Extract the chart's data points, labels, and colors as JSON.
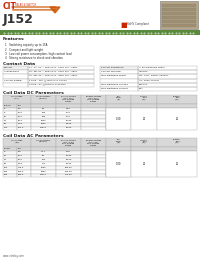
{
  "title": "J152",
  "logo_text": "CIT",
  "subtitle": "RELAY & SWITCH",
  "rohs_text": "RoHS Compliant",
  "features_title": "Features",
  "features": [
    "Switching capacity up to 15A",
    "Compact and light weight",
    "Low coil power consumption, high contact load",
    "Strong resistance to shock and vibration"
  ],
  "contact_data_title": "Contact Data",
  "contact_left": [
    [
      "Contact",
      "1A, 2A, 2C = SPST N.O., SPST N.C., SPDT"
    ],
    [
      "Arrangement",
      "3A, 3B, 3C = 3PST N.O., 3PST N.C., 3PST"
    ],
    [
      "",
      "4A, 4B, 4C = 4PST N.O., 4PST N.C., 4PST"
    ],
    [
      "Contact Rating",
      "1 Pole - 15A @125VAC & 30VDC"
    ],
    [
      "",
      "4 Pole - 5A @250VAC & 30VDC"
    ]
  ],
  "contact_right": [
    [
      "Contact Resistance",
      "< 50 milliohms initial"
    ],
    [
      "Contact Material",
      "AgSnO2"
    ],
    [
      "Max Switching Power",
      "DC: 3.5A, 280W, 1500VA"
    ],
    [
      "",
      "AC: 4000 1000W"
    ],
    [
      "Max Switching Voltage",
      "300VAC"
    ],
    [
      "Max Switching Current",
      "15A"
    ]
  ],
  "dc_title": "Coil Data DC Parameters",
  "dc_subheader": [
    "Nominal",
    "Max"
  ],
  "dc_rows": [
    [
      "5",
      "5.5",
      "80",
      "3.50"
    ],
    [
      "5",
      "12.5",
      "120",
      "8.40"
    ],
    [
      "12",
      "13.5",
      "480",
      "8.40"
    ],
    [
      "24",
      "26.4",
      "1500",
      "16.80"
    ],
    [
      "48",
      "52.8",
      "2500",
      "33.60"
    ],
    [
      "110",
      "121.0",
      "21040",
      "66.00"
    ]
  ],
  "dc_merged": {
    "coil_power": "0.30",
    "operate_time": "20",
    "release_time": "20"
  },
  "ac_title": "Coil Data AC Parameters",
  "ac_subheader": [
    "Current",
    "Max"
  ],
  "ac_rows": [
    [
      "6",
      "6.6",
      "11.1",
      "4.80"
    ],
    [
      "12",
      "13.2",
      "68",
      "18.80"
    ],
    [
      "24",
      "26.4",
      "194",
      "66.20"
    ],
    [
      "48",
      "52.8",
      "774",
      "50.40"
    ],
    [
      "100",
      "110.0",
      "6750",
      "680.00"
    ],
    [
      "120",
      "132.0",
      "6560",
      "100.00"
    ],
    [
      "200",
      "220.0",
      "14400",
      "174.00"
    ]
  ],
  "ac_merged": {
    "coil_power": "1.00",
    "operate_time": "20",
    "release_time": "20"
  },
  "footer": "www.citrelay.com",
  "bg_color": "#ffffff",
  "green_bar": "#5a8a3c",
  "header_gray": "#d8d8d8",
  "border_color": "#aaaaaa",
  "text_dark": "#111111",
  "text_red": "#cc2200"
}
